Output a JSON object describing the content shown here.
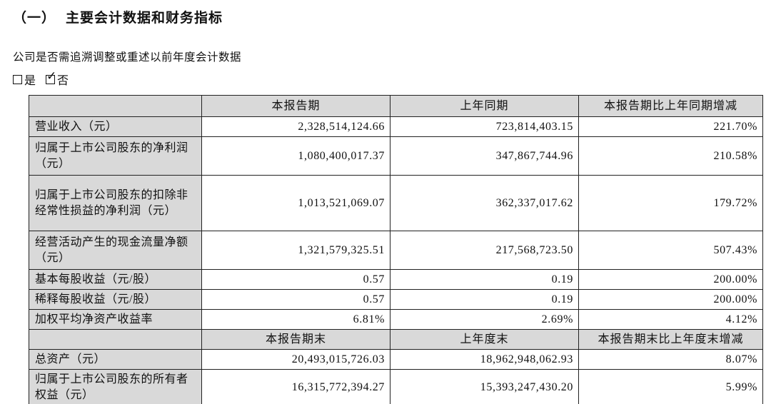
{
  "document": {
    "section_number": "（一）",
    "section_title": "主要会计数据和财务指标",
    "restate_question": "公司是否需追溯调整或重述以前年度会计数据",
    "checkbox_yes_label": "是",
    "checkbox_no_label": "否",
    "checkbox_yes_checked": false,
    "checkbox_no_checked": true
  },
  "icons": {
    "check_icon": "✓"
  },
  "colors": {
    "header_cell_bg": "#d9d9d9",
    "table_border": "#222222",
    "text": "#111111",
    "page_bg": "#ffffff"
  },
  "table": {
    "period_header": {
      "label": "",
      "col1": "本报告期",
      "col2": "上年同期",
      "col3": "本报告期比上年同期增减"
    },
    "period_rows": [
      {
        "label": "营业收入（元）",
        "current": "2,328,514,124.66",
        "prior": "723,814,403.15",
        "change": "221.70%"
      },
      {
        "label": "归属于上市公司股东的净利润（元）",
        "current": "1,080,400,017.37",
        "prior": "347,867,744.96",
        "change": "210.58%"
      },
      {
        "label": "归属于上市公司股东的扣除非经常性损益的净利润（元）",
        "current": "1,013,521,069.07",
        "prior": "362,337,017.62",
        "change": "179.72%"
      },
      {
        "label": "经营活动产生的现金流量净额（元）",
        "current": "1,321,579,325.51",
        "prior": "217,568,723.50",
        "change": "507.43%"
      },
      {
        "label": "基本每股收益（元/股）",
        "current": "0.57",
        "prior": "0.19",
        "change": "200.00%"
      },
      {
        "label": "稀释每股收益（元/股）",
        "current": "0.57",
        "prior": "0.19",
        "change": "200.00%"
      },
      {
        "label": "加权平均净资产收益率",
        "current": "6.81%",
        "prior": "2.69%",
        "change": "4.12%"
      }
    ],
    "yearend_header": {
      "label": "",
      "col1": "本报告期末",
      "col2": "上年度末",
      "col3": "本报告期末比上年度末增减"
    },
    "yearend_rows": [
      {
        "label": "总资产（元）",
        "current": "20,493,015,726.03",
        "prior": "18,962,948,062.93",
        "change": "8.07%"
      },
      {
        "label": "归属于上市公司股东的所有者权益（元）",
        "current": "16,315,772,394.27",
        "prior": "15,393,247,430.20",
        "change": "5.99%"
      }
    ]
  }
}
